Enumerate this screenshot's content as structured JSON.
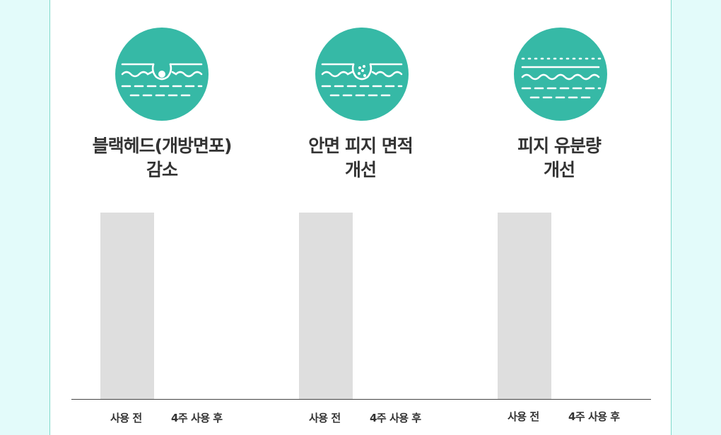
{
  "colors": {
    "background": "#e3fbfa",
    "panel": "#ffffff",
    "panel_border": "#7fd8c9",
    "icon_circle": "#36b9a6",
    "bar": "#dedede",
    "axis": "#444444",
    "text": "#333333"
  },
  "chart_data": [
    {
      "type": "bar",
      "title_lines": [
        "블랙헤드(개방면포)",
        "감소"
      ],
      "icon": "blackhead-pore-icon",
      "categories": [
        "사용 전",
        "4주 사용 후"
      ],
      "values": [
        100,
        0
      ],
      "ylim": [
        0,
        100
      ]
    },
    {
      "type": "bar",
      "title_lines": [
        "안면 피지 면적",
        "개선"
      ],
      "icon": "sebum-pore-icon",
      "categories": [
        "사용 전",
        "4주 사용 후"
      ],
      "values": [
        100,
        0
      ],
      "ylim": [
        0,
        100
      ]
    },
    {
      "type": "bar",
      "title_lines": [
        "피지 유분량",
        "개선"
      ],
      "icon": "oil-layer-icon",
      "categories": [
        "사용 전",
        "4주 사용 후"
      ],
      "values": [
        100,
        0
      ],
      "ylim": [
        0,
        100
      ]
    }
  ]
}
